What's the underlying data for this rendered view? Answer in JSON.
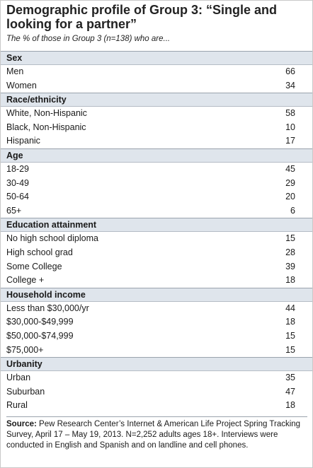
{
  "chart_data": {
    "type": "table",
    "title": "Demographic profile of Group 3: “Single and looking for a partner”",
    "subtitle": "The % of those in Group 3 (n=138) who are...",
    "sections": [
      {
        "heading": "Sex",
        "rows": [
          {
            "label": "Men",
            "value": 66
          },
          {
            "label": "Women",
            "value": 34
          }
        ]
      },
      {
        "heading": "Race/ethnicity",
        "rows": [
          {
            "label": "White, Non-Hispanic",
            "value": 58
          },
          {
            "label": "Black, Non-Hispanic",
            "value": 10
          },
          {
            "label": "Hispanic",
            "value": 17
          }
        ]
      },
      {
        "heading": "Age",
        "rows": [
          {
            "label": "18-29",
            "value": 45
          },
          {
            "label": "30-49",
            "value": 29
          },
          {
            "label": "50-64",
            "value": 20
          },
          {
            "label": "65+",
            "value": 6
          }
        ]
      },
      {
        "heading": "Education attainment",
        "rows": [
          {
            "label": "No high school diploma",
            "value": 15
          },
          {
            "label": "High school grad",
            "value": 28
          },
          {
            "label": "Some College",
            "value": 39
          },
          {
            "label": "College +",
            "value": 18
          }
        ]
      },
      {
        "heading": "Household income",
        "rows": [
          {
            "label": "Less than $30,000/yr",
            "value": 44
          },
          {
            "label": "$30,000-$49,999",
            "value": 18
          },
          {
            "label": "$50,000-$74,999",
            "value": 15
          },
          {
            "label": "$75,000+",
            "value": 15
          }
        ]
      },
      {
        "heading": "Urbanity",
        "rows": [
          {
            "label": "Urban",
            "value": 35
          },
          {
            "label": "Suburban",
            "value": 47
          },
          {
            "label": "Rural",
            "value": 18
          }
        ]
      }
    ],
    "source_label": "Source:",
    "source_text": "Pew Research Center’s Internet & American Life Project Spring Tracking Survey, April 17 – May 19, 2013. N=2,252 adults ages 18+. Interviews were conducted in English and Spanish and on landline and cell phones."
  },
  "colors": {
    "section_header_bg": "#dfe5ec",
    "rule": "#9aa3ad"
  }
}
